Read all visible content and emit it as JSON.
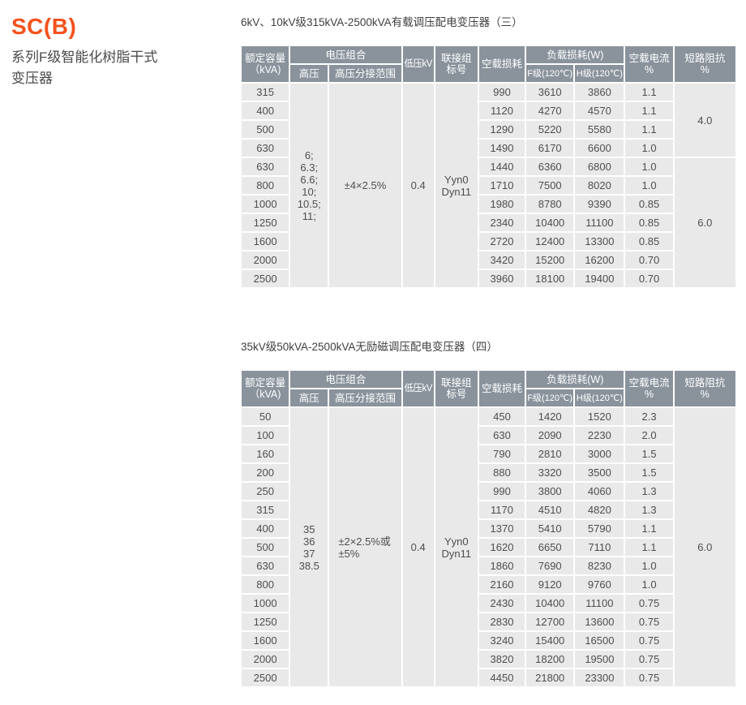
{
  "sidebar": {
    "brand": "SC(B)",
    "subtitle": "系列F级智能化树脂干式\n变压器"
  },
  "colors": {
    "brand": "#f4521d",
    "table_header_bg": "#8a939c",
    "table_header_text": "#ffffff",
    "row_bg": "#e9e9e9",
    "cell_text": "#4e4e4e"
  },
  "tables": [
    {
      "title": "6kV、10kV级315kVA-2500kVA有载调压配电变压器（三）",
      "columns": {
        "capacity": "额定容量\n（kVA)",
        "voltage_combo": "电压组合",
        "hv": "高压",
        "hv_tap_range": "高压分接范围",
        "lv": "低压kV",
        "vector_group": "联接组\n标号",
        "no_load_loss": "空载损耗",
        "load_loss": "负载损耗(W)",
        "f_class": "F级(120℃)",
        "h_class": "H级(120℃)",
        "no_load_current": "空载电流\n%",
        "impedance": "短路阻抗\n%"
      },
      "merged": {
        "hv": "6;\n6.3;\n6.6;\n10;\n10.5;\n11;",
        "tap_range": "±4×2.5%",
        "lv": "0.4",
        "vector_group": "Yyn0\nDyn11"
      },
      "rows": [
        {
          "capacity": "315",
          "no_load_loss": "990",
          "f_class_loss": "3610",
          "h_class_loss": "3860",
          "no_load_current": "1.1"
        },
        {
          "capacity": "400",
          "no_load_loss": "1120",
          "f_class_loss": "4270",
          "h_class_loss": "4570",
          "no_load_current": "1.1"
        },
        {
          "capacity": "500",
          "no_load_loss": "1290",
          "f_class_loss": "5220",
          "h_class_loss": "5580",
          "no_load_current": "1.1"
        },
        {
          "capacity": "630",
          "no_load_loss": "1490",
          "f_class_loss": "6170",
          "h_class_loss": "6600",
          "no_load_current": "1.0"
        },
        {
          "capacity": "630",
          "no_load_loss": "1440",
          "f_class_loss": "6360",
          "h_class_loss": "6800",
          "no_load_current": "1.0"
        },
        {
          "capacity": "800",
          "no_load_loss": "1710",
          "f_class_loss": "7500",
          "h_class_loss": "8020",
          "no_load_current": "1.0"
        },
        {
          "capacity": "1000",
          "no_load_loss": "1980",
          "f_class_loss": "8780",
          "h_class_loss": "9390",
          "no_load_current": "0.85"
        },
        {
          "capacity": "1250",
          "no_load_loss": "2340",
          "f_class_loss": "10400",
          "h_class_loss": "11100",
          "no_load_current": "0.85"
        },
        {
          "capacity": "1600",
          "no_load_loss": "2720",
          "f_class_loss": "12400",
          "h_class_loss": "13300",
          "no_load_current": "0.85"
        },
        {
          "capacity": "2000",
          "no_load_loss": "3420",
          "f_class_loss": "15200",
          "h_class_loss": "16200",
          "no_load_current": "0.70"
        },
        {
          "capacity": "2500",
          "no_load_loss": "3960",
          "f_class_loss": "18100",
          "h_class_loss": "19400",
          "no_load_current": "0.70"
        }
      ],
      "impedance_groups": [
        {
          "value": "4.0",
          "span": 4
        },
        {
          "value": "6.0",
          "span": 7
        }
      ]
    },
    {
      "title": "35kV级50kVA-2500kVA无励磁调压配电变压器（四）",
      "columns": {
        "capacity": "额定容量\n（kVA)",
        "voltage_combo": "电压组合",
        "hv": "高压",
        "hv_tap_range": "高压分接范围",
        "lv": "低压kV",
        "vector_group": "联接组\n标号",
        "no_load_loss": "空载损耗",
        "load_loss": "负载损耗(W)",
        "f_class": "F级(120℃)",
        "h_class": "H级(120℃)",
        "no_load_current": "空载电流\n%",
        "impedance": "短路阻抗\n%"
      },
      "merged": {
        "hv": "35\n36\n37\n38.5",
        "tap_range": "±2×2.5%或\n±5%",
        "lv": "0.4",
        "vector_group": "Yyn0\nDyn11"
      },
      "rows": [
        {
          "capacity": "50",
          "no_load_loss": "450",
          "f_class_loss": "1420",
          "h_class_loss": "1520",
          "no_load_current": "2.3"
        },
        {
          "capacity": "100",
          "no_load_loss": "630",
          "f_class_loss": "2090",
          "h_class_loss": "2230",
          "no_load_current": "2.0"
        },
        {
          "capacity": "160",
          "no_load_loss": "790",
          "f_class_loss": "2810",
          "h_class_loss": "3000",
          "no_load_current": "1.5"
        },
        {
          "capacity": "200",
          "no_load_loss": "880",
          "f_class_loss": "3320",
          "h_class_loss": "3500",
          "no_load_current": "1.5"
        },
        {
          "capacity": "250",
          "no_load_loss": "990",
          "f_class_loss": "3800",
          "h_class_loss": "4060",
          "no_load_current": "1.3"
        },
        {
          "capacity": "315",
          "no_load_loss": "1170",
          "f_class_loss": "4510",
          "h_class_loss": "4820",
          "no_load_current": "1.3"
        },
        {
          "capacity": "400",
          "no_load_loss": "1370",
          "f_class_loss": "5410",
          "h_class_loss": "5790",
          "no_load_current": "1.1"
        },
        {
          "capacity": "500",
          "no_load_loss": "1620",
          "f_class_loss": "6650",
          "h_class_loss": "7110",
          "no_load_current": "1.1"
        },
        {
          "capacity": "630",
          "no_load_loss": "1860",
          "f_class_loss": "7690",
          "h_class_loss": "8230",
          "no_load_current": "1.0"
        },
        {
          "capacity": "800",
          "no_load_loss": "2160",
          "f_class_loss": "9120",
          "h_class_loss": "9760",
          "no_load_current": "1.0"
        },
        {
          "capacity": "1000",
          "no_load_loss": "2430",
          "f_class_loss": "10400",
          "h_class_loss": "11100",
          "no_load_current": "0.75"
        },
        {
          "capacity": "1250",
          "no_load_loss": "2830",
          "f_class_loss": "12700",
          "h_class_loss": "13600",
          "no_load_current": "0.75"
        },
        {
          "capacity": "1600",
          "no_load_loss": "3240",
          "f_class_loss": "15400",
          "h_class_loss": "16500",
          "no_load_current": "0.75"
        },
        {
          "capacity": "2000",
          "no_load_loss": "3820",
          "f_class_loss": "18200",
          "h_class_loss": "19500",
          "no_load_current": "0.75"
        },
        {
          "capacity": "2500",
          "no_load_loss": "4450",
          "f_class_loss": "21800",
          "h_class_loss": "23300",
          "no_load_current": "0.75"
        }
      ],
      "impedance_groups": [
        {
          "value": "6.0",
          "span": 15
        }
      ]
    }
  ]
}
